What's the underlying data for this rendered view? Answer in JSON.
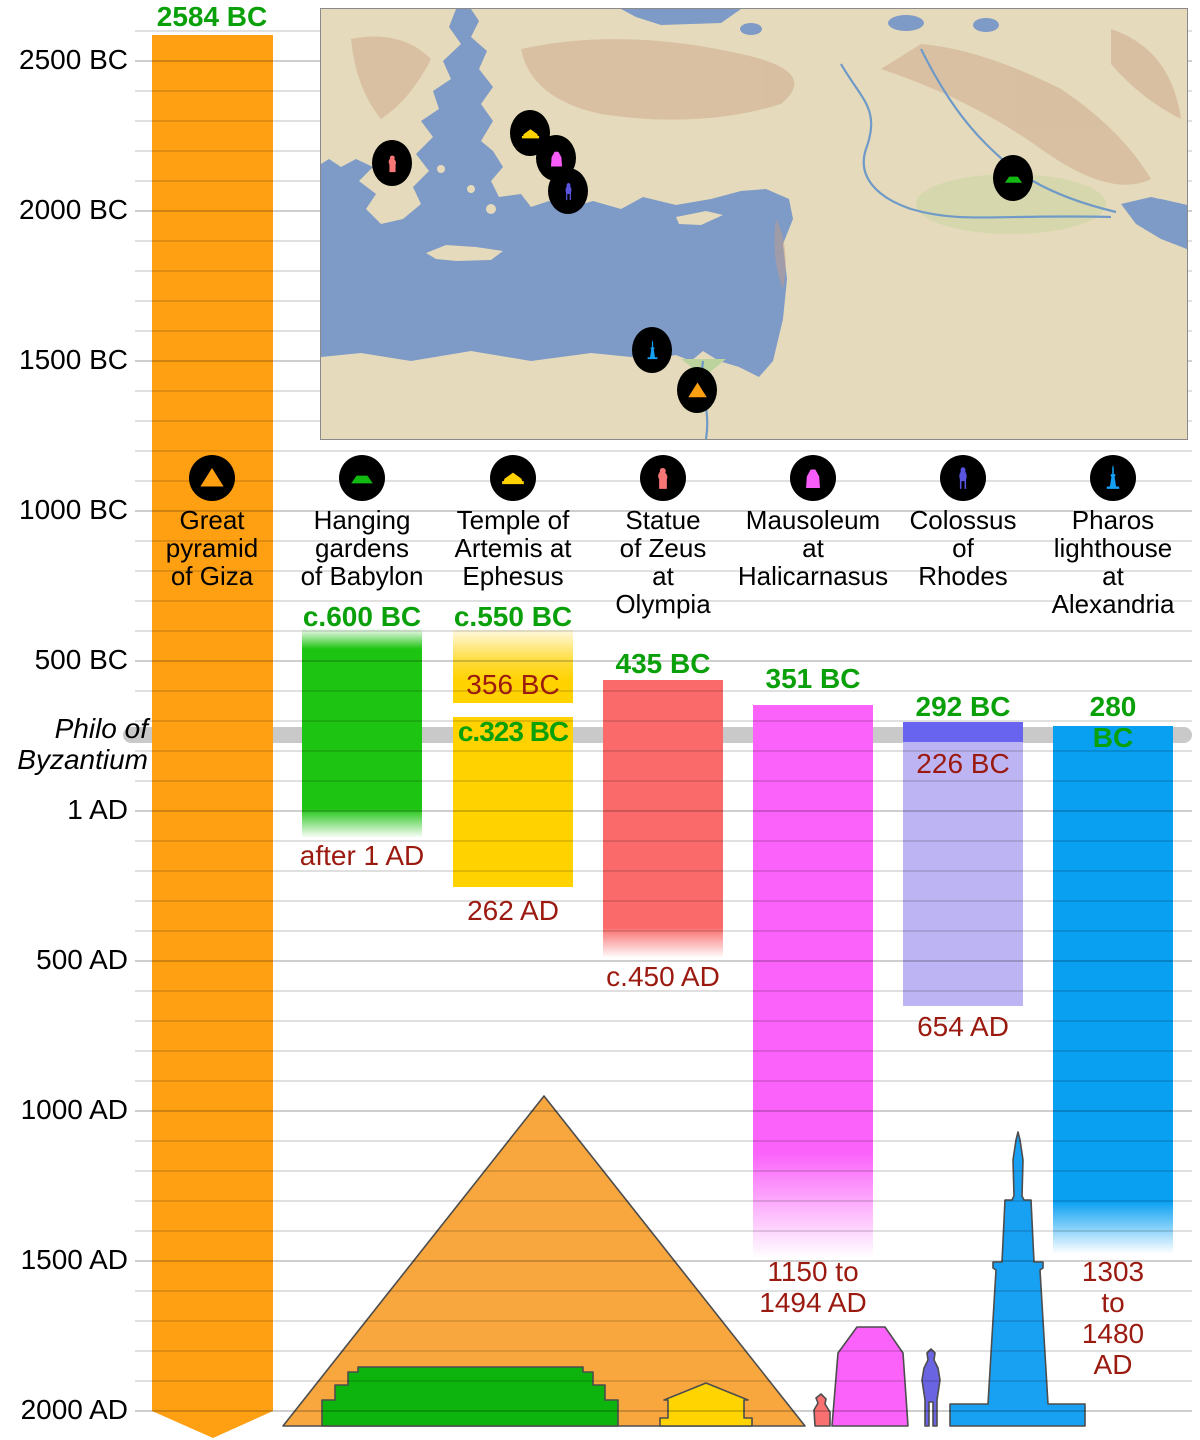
{
  "chart_data": {
    "type": "bar",
    "subtype": "vertical-timeline-of-lifespans",
    "grid": "on",
    "axis_range_years": [
      -2600,
      2000
    ],
    "ticks": [
      {
        "label": "2500 BC",
        "year": -2500
      },
      {
        "label": "2000 BC",
        "year": -2000
      },
      {
        "label": "1500 BC",
        "year": -1500
      },
      {
        "label": "1000 BC",
        "year": -1000
      },
      {
        "label": "500 BC",
        "year": -500
      },
      {
        "label": "1 AD",
        "year": 1
      },
      {
        "label": "500 AD",
        "year": 500
      },
      {
        "label": "1000 AD",
        "year": 1000
      },
      {
        "label": "1500 AD",
        "year": 1500
      },
      {
        "label": "2000 AD",
        "year": 2000
      }
    ],
    "annotation": {
      "text": "Philo of\nByzantium",
      "year": -250
    },
    "series": [
      {
        "name": "Great\npyramid\nof Giza",
        "icon": "pyramid",
        "color": "#ffa013",
        "built_label": "2584 BC",
        "built_year": -2584,
        "still_standing": true
      },
      {
        "name": "Hanging\ngardens\nof Babylon",
        "icon": "gardens",
        "color": "#1ec412",
        "built_label": "c.600 BC",
        "built_year": -600,
        "destroyed_label": "after 1 AD",
        "destroyed_year": 1
      },
      {
        "name": "Temple of\nArtemis at\nEphesus",
        "icon": "temple",
        "color": "#ffd200",
        "built_label": "c.550 BC",
        "built_year": -550,
        "burned_label": "356 BC",
        "burned_year": -356,
        "rebuilt_label": "c.323 BC",
        "rebuilt_year": -323,
        "destroyed_label": "262 AD",
        "destroyed_year": 262
      },
      {
        "name": "Statue\nof Zeus\nat\nOlympia",
        "icon": "zeus",
        "color": "#fb6a6a",
        "built_label": "435 BC",
        "built_year": -435,
        "destroyed_label": "c.450 AD",
        "destroyed_year": 450
      },
      {
        "name": "Mausoleum\nat\nHalicarnasus",
        "icon": "mausoleum",
        "color": "#fa62fa",
        "built_label": "351 BC",
        "built_year": -351,
        "destroyed_label": "1150 to\n1494 AD",
        "destroyed_year_range": [
          1150,
          1494
        ]
      },
      {
        "name": "Colossus\nof\nRhodes",
        "icon": "colossus",
        "color": "#6864ef",
        "built_label": "292 BC",
        "built_year": -292,
        "fell_label": "226 BC",
        "fell_year": -226,
        "remains_color": "#bdb4f3",
        "removed_label": "654 AD",
        "removed_year": 654
      },
      {
        "name": "Pharos\nlighthouse\nat\nAlexandria",
        "icon": "pharos",
        "color": "#09a0f2",
        "built_label": "280 BC",
        "built_year": -280,
        "destroyed_label": "1303 to\n1480 AD",
        "destroyed_year_range": [
          1303,
          1480
        ]
      }
    ]
  },
  "map": {
    "markers": [
      {
        "icon": "zeus"
      },
      {
        "icon": "temple"
      },
      {
        "icon": "mausoleum"
      },
      {
        "icon": "colossus"
      },
      {
        "icon": "gardens"
      },
      {
        "icon": "pharos"
      },
      {
        "icon": "pyramid"
      }
    ]
  }
}
